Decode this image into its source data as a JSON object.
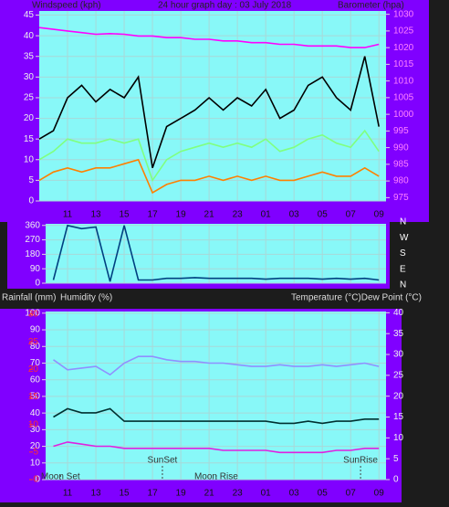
{
  "chart_data": [
    {
      "type": "line",
      "title": "24 hour graph day : 03 July 2018",
      "ylabel": "Windspeed (kph)",
      "y2label": "Barometer (hpa)",
      "x": [
        9,
        10,
        11,
        12,
        13,
        14,
        15,
        16,
        17,
        18,
        19,
        20,
        21,
        22,
        23,
        24,
        25,
        26,
        27,
        28,
        29,
        30,
        31,
        32,
        33
      ],
      "xlim": [
        9,
        33.5
      ],
      "xticks": [
        11,
        13,
        15,
        17,
        19,
        21,
        23,
        {
          "value": 25,
          "label": "01"
        },
        {
          "value": 27,
          "label": "03"
        },
        {
          "value": 29,
          "label": "05"
        },
        {
          "value": 31,
          "label": "07"
        },
        {
          "value": 33,
          "label": "09"
        }
      ],
      "ylim": [
        0,
        46
      ],
      "yticks": [
        0,
        5,
        10,
        15,
        20,
        25,
        30,
        35,
        40,
        45
      ],
      "y2lim": [
        974,
        1031
      ],
      "y2ticks": [
        975,
        980,
        985,
        990,
        995,
        1000,
        1005,
        1010,
        1015,
        1020,
        1025,
        1030
      ],
      "grid": true,
      "series": [
        {
          "color": "#ff00ff",
          "axis": "y2",
          "values": [
            1026,
            1025.5,
            1025,
            1024.5,
            1024,
            1024.2,
            1024,
            1023.5,
            1023.5,
            1023,
            1023,
            1022.5,
            1022.5,
            1022,
            1022,
            1021.5,
            1021.5,
            1021,
            1021,
            1020.5,
            1020.5,
            1020.5,
            1020,
            1020,
            1021
          ]
        },
        {
          "color": "#000000",
          "values": [
            15,
            17,
            25,
            28,
            24,
            27,
            25,
            30,
            8,
            18,
            20,
            22,
            25,
            22,
            25,
            23,
            27,
            20,
            22,
            28,
            30,
            25,
            22,
            35,
            18
          ]
        },
        {
          "color": "#80ff80",
          "values": [
            10,
            12,
            15,
            14,
            14,
            15,
            14,
            15,
            5,
            10,
            12,
            13,
            14,
            13,
            14,
            13,
            15,
            12,
            13,
            15,
            16,
            14,
            13,
            17,
            12
          ]
        },
        {
          "color": "#ff8000",
          "values": [
            5,
            7,
            8,
            7,
            8,
            8,
            9,
            10,
            2,
            4,
            5,
            5,
            6,
            5,
            6,
            5,
            6,
            5,
            5,
            6,
            7,
            6,
            6,
            8,
            6
          ]
        }
      ]
    },
    {
      "type": "line",
      "x": [
        10,
        11,
        12,
        13,
        14,
        15,
        16,
        17,
        18,
        19,
        20,
        21,
        22,
        23,
        24,
        25,
        26,
        27,
        28,
        29,
        30,
        31,
        32,
        33
      ],
      "xlim": [
        9.45,
        33.5
      ],
      "ylim": [
        0,
        370
      ],
      "yticks": [
        0,
        90,
        180,
        270,
        360
      ],
      "compass": [
        "N",
        "W",
        "S",
        "E",
        "N"
      ],
      "grid": true,
      "series": [
        {
          "color": "#004080",
          "values": [
            20,
            360,
            340,
            350,
            10,
            360,
            20,
            20,
            30,
            30,
            35,
            30,
            30,
            30,
            30,
            25,
            30,
            30,
            30,
            25,
            30,
            25,
            30,
            20
          ]
        }
      ]
    },
    {
      "type": "line",
      "rainfall_label": "Rainfall (mm)",
      "ylabel": "Humidity (%)",
      "y2label": "Temperature (°C)Dew Point (°C)",
      "x": [
        10,
        11,
        12,
        13,
        14,
        15,
        16,
        17,
        18,
        19,
        20,
        21,
        22,
        23,
        24,
        25,
        26,
        27,
        28,
        29,
        30,
        31,
        32,
        33
      ],
      "xlim": [
        9.45,
        33.5
      ],
      "ylim": [
        0,
        101
      ],
      "yticks": [
        0,
        10,
        20,
        30,
        40,
        50,
        60,
        70,
        80,
        90,
        100
      ],
      "rainfall_lim": [
        0,
        30.5
      ],
      "rainfall_ticks": [
        0,
        5,
        10,
        15,
        20,
        25,
        30
      ],
      "y2lim": [
        0,
        40.3
      ],
      "y2ticks": [
        0,
        5,
        10,
        15,
        20,
        25,
        30,
        35,
        40
      ],
      "grid": true,
      "series": [
        {
          "color": "#9090ff",
          "values": [
            72,
            66,
            67,
            68,
            63,
            70,
            74,
            74,
            72,
            71,
            71,
            70,
            70,
            69,
            68,
            68,
            69,
            68,
            68,
            69,
            68,
            69,
            70,
            68
          ]
        },
        {
          "color": "#003030",
          "axis": "y2",
          "values": [
            15,
            17,
            16,
            16,
            17,
            14,
            14,
            14,
            14,
            14,
            14,
            14,
            14,
            14,
            14,
            14,
            13.5,
            13.5,
            14,
            13.5,
            14,
            14,
            14.5,
            14.5
          ]
        },
        {
          "color": "#e020e0",
          "axis": "y2",
          "values": [
            8,
            9,
            8.5,
            8,
            8,
            7.5,
            7.5,
            7.5,
            7.5,
            7.5,
            7.5,
            7.5,
            7,
            7,
            7,
            7,
            6.5,
            6.5,
            6.5,
            6.5,
            7,
            7,
            7.5,
            7.5
          ]
        }
      ],
      "annotations": [
        {
          "text": "Moon Set",
          "x": 10.5
        },
        {
          "text": "SunSet",
          "x": 17.7
        },
        {
          "text": "Moon Rise",
          "x": 21.5
        },
        {
          "text": "SunRise",
          "x": 31.7
        }
      ]
    }
  ]
}
